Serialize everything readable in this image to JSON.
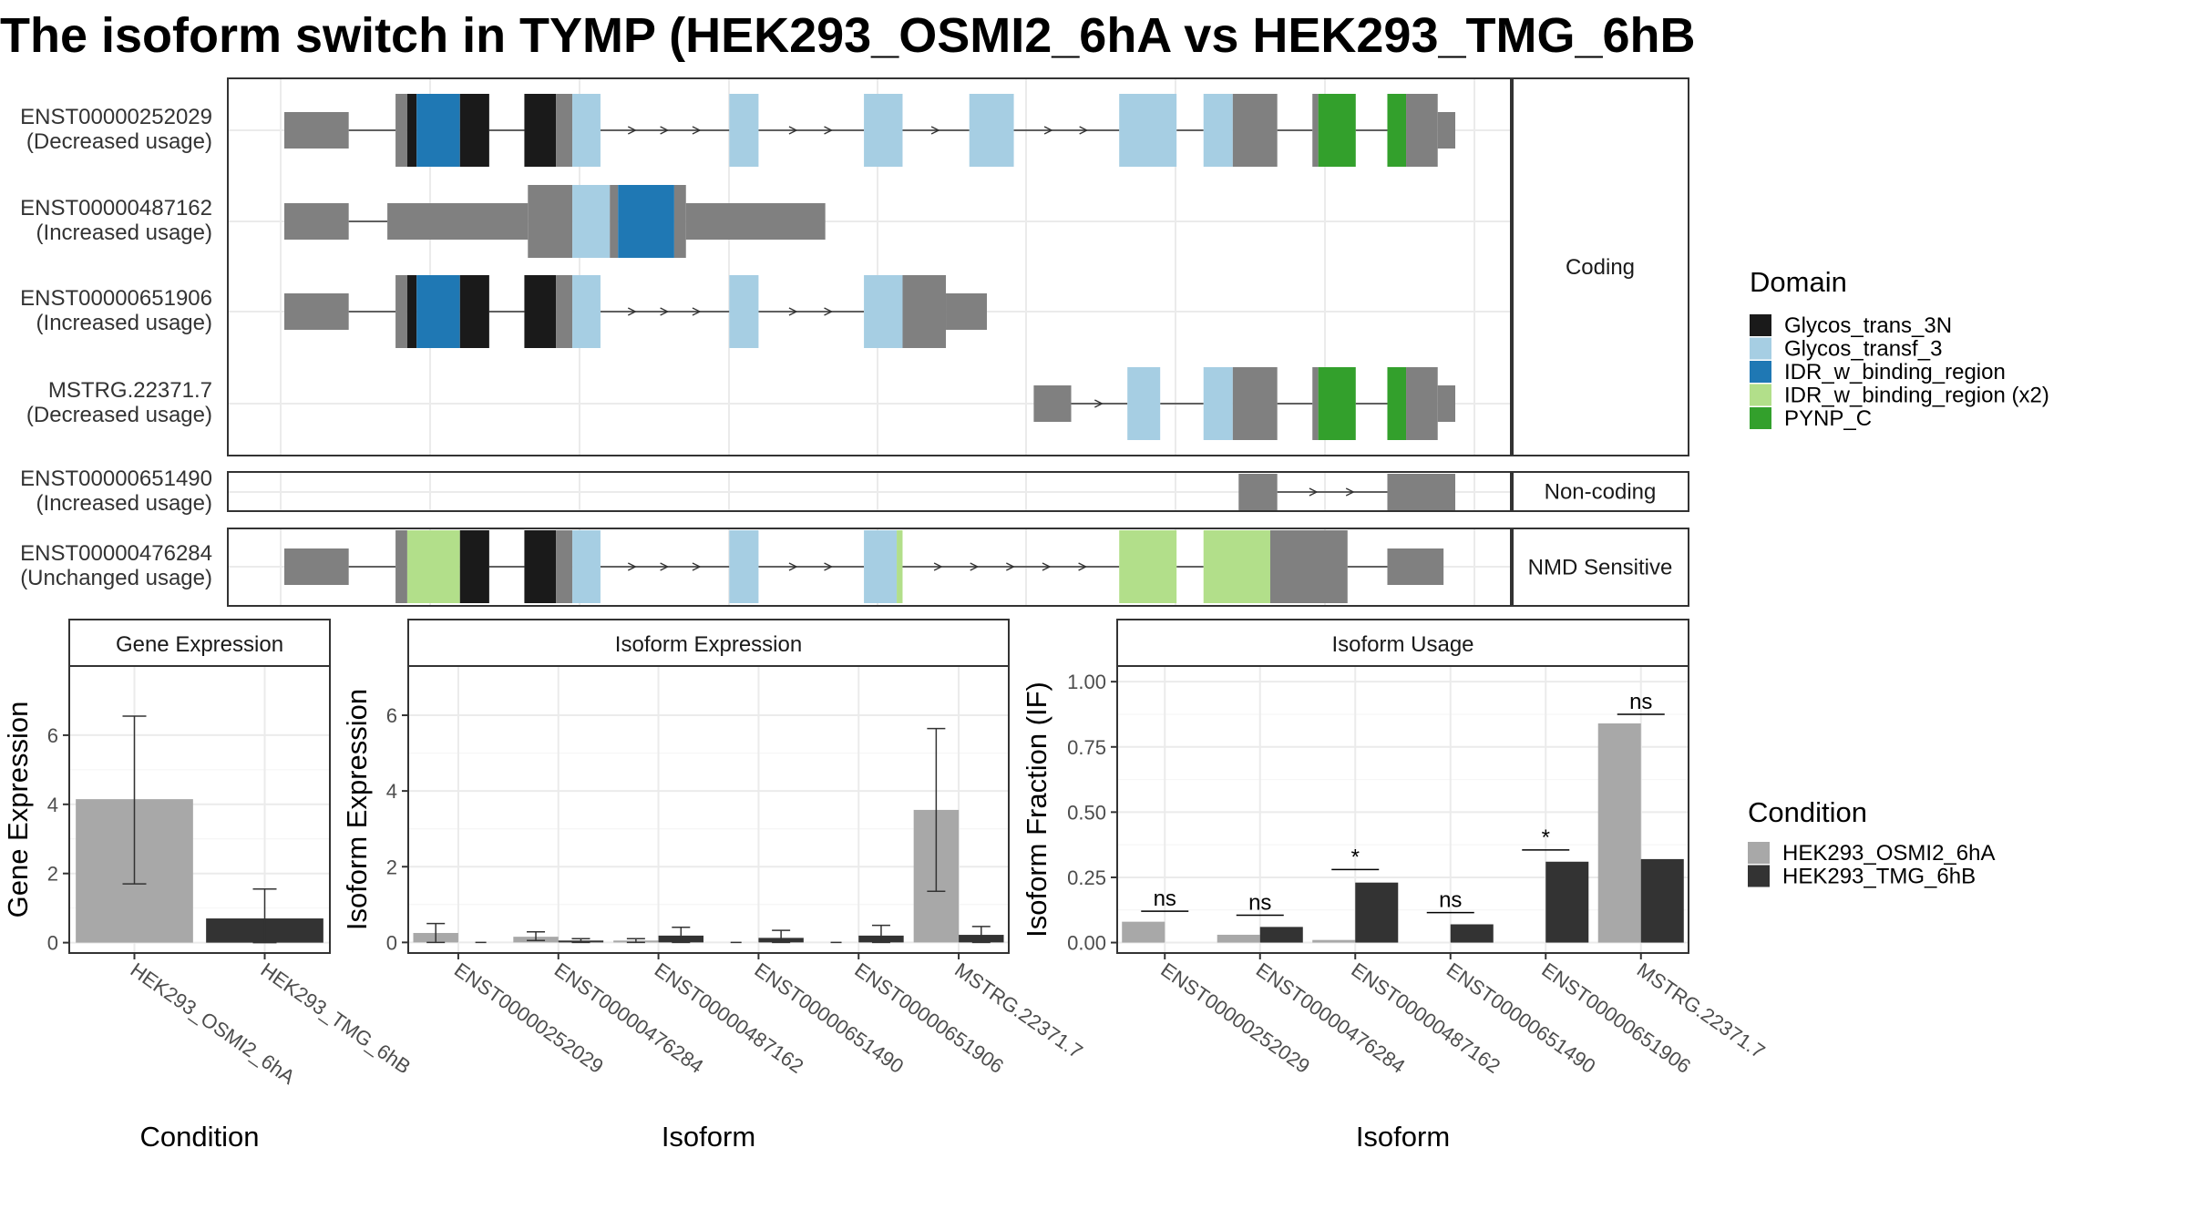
{
  "title": "The isoform switch in TYMP (HEK293_OSMI2_6hA vs HEK293_TMG_6hB",
  "colors": {
    "intron": "#808080",
    "exon": "#808080",
    "Glycos_trans_3N": "#1a1a1a",
    "Glycos_transf_3": "#a6cee3",
    "IDR_w_binding_region": "#1f78b4",
    "IDR_w_binding_region (x2)": "#b2df8a",
    "PYNP_C": "#33a02c",
    "cond_a": "#a8a8a8",
    "cond_b": "#333333"
  },
  "chart_data": [
    {
      "type": "gene-structure",
      "genomic_range": [
        0,
        100
      ],
      "groups": [
        {
          "name": "Coding",
          "transcripts": [
            {
              "id": "ENST00000252029",
              "status": "(Decreased usage)",
              "exons": [
                [
                  0,
                  5.5,
                  "n"
                ],
                [
                  9.5,
                  10.5,
                  "c"
                ],
                [
                  10.5,
                  11.3,
                  "c",
                  "Glycos_trans_3N"
                ],
                [
                  11.3,
                  15,
                  "c",
                  "IDR_w_binding_region"
                ],
                [
                  15,
                  17.5,
                  "c",
                  "Glycos_trans_3N"
                ],
                [
                  20.5,
                  23.2,
                  "c",
                  "Glycos_trans_3N"
                ],
                [
                  23.2,
                  24.6,
                  "c"
                ],
                [
                  24.6,
                  27,
                  "c",
                  "Glycos_transf_3"
                ],
                [
                  38,
                  40.5,
                  "c",
                  "Glycos_transf_3"
                ],
                [
                  49.5,
                  52.8,
                  "c",
                  "Glycos_transf_3"
                ],
                [
                  58.5,
                  62.3,
                  "c",
                  "Glycos_transf_3"
                ],
                [
                  71.3,
                  76.2,
                  "c",
                  "Glycos_transf_3"
                ],
                [
                  78.5,
                  81,
                  "c",
                  "Glycos_transf_3"
                ],
                [
                  81,
                  84.8,
                  "c"
                ],
                [
                  87.8,
                  88.3,
                  "c"
                ],
                [
                  88.3,
                  91.5,
                  "c",
                  "PYNP_C"
                ],
                [
                  94.2,
                  95.8,
                  "c",
                  "PYNP_C"
                ],
                [
                  95.8,
                  98.5,
                  "c"
                ],
                [
                  98.5,
                  100,
                  "n"
                ]
              ]
            },
            {
              "id": "ENST00000487162",
              "status": "(Increased usage)",
              "exons": [
                [
                  0,
                  5.5,
                  "n"
                ],
                [
                  8.8,
                  20.8,
                  "n"
                ],
                [
                  20.8,
                  24.6,
                  "c"
                ],
                [
                  24.6,
                  27.8,
                  "c",
                  "Glycos_transf_3"
                ],
                [
                  27.8,
                  28.5,
                  "c"
                ],
                [
                  28.5,
                  33.3,
                  "c",
                  "IDR_w_binding_region"
                ],
                [
                  33.3,
                  34.3,
                  "c"
                ],
                [
                  34.3,
                  46.2,
                  "n"
                ]
              ]
            },
            {
              "id": "ENST00000651906",
              "status": "(Increased usage)",
              "exons": [
                [
                  0,
                  5.5,
                  "n"
                ],
                [
                  9.5,
                  10.5,
                  "c"
                ],
                [
                  10.5,
                  11.3,
                  "c",
                  "Glycos_trans_3N"
                ],
                [
                  11.3,
                  15,
                  "c",
                  "IDR_w_binding_region"
                ],
                [
                  15,
                  17.5,
                  "c",
                  "Glycos_trans_3N"
                ],
                [
                  20.5,
                  23.2,
                  "c",
                  "Glycos_trans_3N"
                ],
                [
                  23.2,
                  24.6,
                  "c"
                ],
                [
                  24.6,
                  27,
                  "c",
                  "Glycos_transf_3"
                ],
                [
                  38,
                  40.5,
                  "c",
                  "Glycos_transf_3"
                ],
                [
                  49.5,
                  52.8,
                  "c",
                  "Glycos_transf_3"
                ],
                [
                  52.8,
                  56.5,
                  "c"
                ],
                [
                  56.5,
                  60,
                  "n"
                ]
              ]
            },
            {
              "id": "MSTRG.22371.7",
              "status": "(Decreased usage)",
              "exons": [
                [
                  64,
                  67.2,
                  "n"
                ],
                [
                  72,
                  74.8,
                  "c",
                  "Glycos_transf_3"
                ],
                [
                  78.5,
                  81,
                  "c",
                  "Glycos_transf_3"
                ],
                [
                  81,
                  84.8,
                  "c"
                ],
                [
                  87.8,
                  88.3,
                  "c"
                ],
                [
                  88.3,
                  91.5,
                  "c",
                  "PYNP_C"
                ],
                [
                  94.2,
                  95.8,
                  "c",
                  "PYNP_C"
                ],
                [
                  95.8,
                  98.5,
                  "c"
                ],
                [
                  98.5,
                  100,
                  "n"
                ]
              ]
            }
          ]
        },
        {
          "name": "Non-coding",
          "transcripts": [
            {
              "id": "ENST00000651490",
              "status": "(Increased usage)",
              "exons": [
                [
                  81.5,
                  84.8,
                  "n"
                ],
                [
                  94.2,
                  100,
                  "n"
                ]
              ]
            }
          ]
        },
        {
          "name": "NMD Sensitive",
          "transcripts": [
            {
              "id": "ENST00000476284",
              "status": "(Unchanged usage)",
              "exons": [
                [
                  0,
                  5.5,
                  "n"
                ],
                [
                  9.5,
                  10.5,
                  "c"
                ],
                [
                  10.5,
                  15,
                  "c",
                  "IDR_w_binding_region (x2)"
                ],
                [
                  15,
                  17.5,
                  "c",
                  "Glycos_trans_3N"
                ],
                [
                  20.5,
                  23.2,
                  "c",
                  "Glycos_trans_3N"
                ],
                [
                  23.2,
                  24.6,
                  "c"
                ],
                [
                  24.6,
                  27,
                  "c",
                  "Glycos_transf_3"
                ],
                [
                  38,
                  40.5,
                  "c",
                  "Glycos_transf_3"
                ],
                [
                  49.5,
                  52.3,
                  "c",
                  "Glycos_transf_3"
                ],
                [
                  52.3,
                  52.8,
                  "c",
                  "IDR_w_binding_region (x2)"
                ],
                [
                  71.3,
                  76.2,
                  "c",
                  "IDR_w_binding_region (x2)"
                ],
                [
                  78.5,
                  84.2,
                  "c",
                  "IDR_w_binding_region (x2)"
                ],
                [
                  84.2,
                  90.8,
                  "c"
                ],
                [
                  94.2,
                  99,
                  "n"
                ]
              ]
            }
          ]
        }
      ],
      "legend_title": "Domain",
      "legend": [
        "Glycos_trans_3N",
        "Glycos_transf_3",
        "IDR_w_binding_region",
        "IDR_w_binding_region (x2)",
        "PYNP_C"
      ]
    },
    {
      "type": "bar",
      "title": "Gene Expression",
      "xlabel": "Condition",
      "ylabel": "Gene Expression",
      "ylim": [
        -0.3,
        8
      ],
      "yticks": [
        0,
        2,
        4,
        6
      ],
      "categories": [
        "HEK293_OSMI2_6hA",
        "HEK293_TMG_6hB"
      ],
      "values": [
        4.15,
        0.7
      ],
      "errors": [
        [
          1.7,
          6.55
        ],
        [
          0.0,
          1.55
        ]
      ]
    },
    {
      "type": "bar",
      "title": "Isoform Expression",
      "xlabel": "Isoform",
      "ylabel": "Isoform Expression",
      "ylim": [
        -0.28,
        7.3
      ],
      "yticks": [
        0,
        2,
        4,
        6
      ],
      "categories": [
        "ENST00000252029",
        "ENST00000476284",
        "ENST00000487162",
        "ENST00000651490",
        "ENST00000651906",
        "MSTRG.22371.7"
      ],
      "series": [
        {
          "values": [
            0.25,
            0.15,
            0.05,
            0.0,
            0.0,
            3.5
          ],
          "errors": [
            [
              0.0,
              0.5
            ],
            [
              0.05,
              0.28
            ],
            [
              0.0,
              0.1
            ],
            [
              0,
              0
            ],
            [
              0,
              0
            ],
            [
              1.35,
              5.65
            ]
          ]
        },
        {
          "values": [
            0.0,
            0.05,
            0.18,
            0.12,
            0.18,
            0.2
          ],
          "errors": [
            [
              0,
              0
            ],
            [
              0.0,
              0.1
            ],
            [
              0.0,
              0.4
            ],
            [
              0.0,
              0.32
            ],
            [
              0.0,
              0.45
            ],
            [
              0.0,
              0.42
            ]
          ]
        }
      ]
    },
    {
      "type": "bar",
      "title": "Isoform Usage",
      "xlabel": "Isoform",
      "ylabel": "Isoform Fraction (IF)",
      "ylim": [
        -0.04,
        1.06
      ],
      "yticks": [
        "0.00",
        "0.25",
        "0.50",
        "0.75",
        "1.00"
      ],
      "categories": [
        "ENST00000252029",
        "ENST00000476284",
        "ENST00000487162",
        "ENST00000651490",
        "ENST00000651906",
        "MSTRG.22371.7"
      ],
      "series": [
        {
          "values": [
            0.08,
            0.03,
            0.01,
            0.0,
            0.0,
            0.84
          ]
        },
        {
          "values": [
            0.0,
            0.06,
            0.23,
            0.07,
            0.31,
            0.32
          ]
        }
      ],
      "significance": [
        "ns",
        "ns",
        "*",
        "ns",
        "*",
        "ns"
      ],
      "sig_levels": [
        0.12,
        0.105,
        0.28,
        0.115,
        0.355,
        0.875
      ]
    }
  ],
  "condition_legend": {
    "title": "Condition",
    "entries": [
      "HEK293_OSMI2_6hA",
      "HEK293_TMG_6hB"
    ]
  }
}
